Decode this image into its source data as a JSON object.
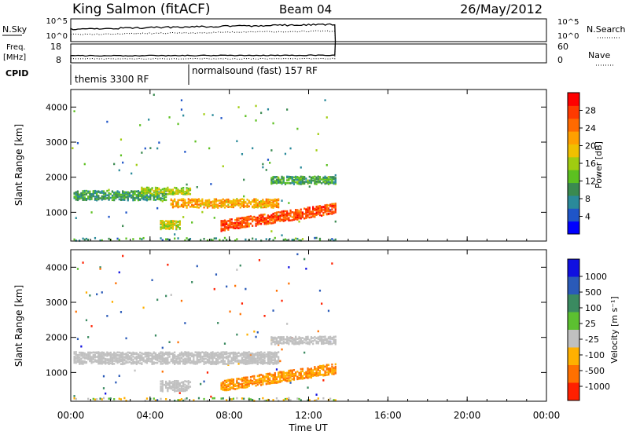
{
  "header": {
    "station": "King Salmon (fitACF)",
    "beam": "Beam 04",
    "date": "26/May/2012"
  },
  "summary_panels": {
    "nsky_label": "N.Sky",
    "nsky_ticks": [
      "10^5",
      "10^0"
    ],
    "nsearch_label": "N.Search",
    "nsearch_ticks": [
      "10^5",
      "10^0"
    ],
    "freq_label_1": "Freq.",
    "freq_label_2": "[MHz]",
    "freq_ticks": [
      "18",
      "8"
    ],
    "nave_label": "Nave",
    "nave_ticks": [
      "60",
      "0"
    ],
    "cpid_label": "CPID",
    "cpid_segments": [
      {
        "label": "themis 3300 RF",
        "start_hour": 0.0
      },
      {
        "label": "normalsound (fast) 157 RF",
        "start_hour": 6.0
      }
    ]
  },
  "axes": {
    "xlabel": "Time UT",
    "ylabel": "Slant Range [km]",
    "x_ticks": [
      "00:00",
      "04:00",
      "08:00",
      "12:00",
      "16:00",
      "20:00",
      "00:00"
    ],
    "y_ticks": [
      "1000",
      "2000",
      "3000",
      "4000"
    ]
  },
  "power_scale": {
    "label": "Power [dB]",
    "ticks": [
      "4",
      "8",
      "12",
      "16",
      "20",
      "24",
      "28"
    ],
    "colors": [
      "#0000ff",
      "#1f55c8",
      "#2a8a9a",
      "#3a8a50",
      "#5cc020",
      "#a0cc10",
      "#f0c000",
      "#ffa000",
      "#ff6a00",
      "#ff3a00",
      "#ff0000"
    ]
  },
  "velocity_scale": {
    "label": "Velocity [m s⁻¹]",
    "ticks": [
      "1000",
      "500",
      "100",
      "25",
      "-25",
      "-100",
      "-500",
      "-1000"
    ],
    "colors": [
      "#1010e0",
      "#2a5ab8",
      "#3a8a60",
      "#5cc030",
      "#c0c0c0",
      "#ffb000",
      "#ff7000",
      "#ff2000"
    ]
  },
  "chart_data": {
    "type": "heatmap",
    "x_range_hours": [
      0,
      24
    ],
    "y_range_km": [
      180,
      4500
    ],
    "data_end_hour": 13.35,
    "power_features": [
      {
        "t_start": 0.1,
        "t_end": 4.8,
        "range_center": 1520,
        "range_width": 280,
        "value_db": 9
      },
      {
        "t_start": 3.5,
        "t_end": 6.0,
        "range_center": 1650,
        "range_width": 200,
        "value_db": 15
      },
      {
        "t_start": 5.0,
        "t_end": 10.5,
        "range_center": 1300,
        "range_width": 260,
        "value_db": 20
      },
      {
        "t_start": 7.5,
        "t_end": 13.35,
        "range_center_start": 650,
        "range_center_end": 1150,
        "range_width": 300,
        "value_db": 26
      },
      {
        "t_start": 10.0,
        "t_end": 13.35,
        "range_center": 1950,
        "range_width": 220,
        "value_db": 10
      },
      {
        "t_start": 4.5,
        "t_end": 5.5,
        "range_center": 680,
        "range_width": 250,
        "value_db": 16
      }
    ],
    "velocity_features": [
      {
        "t_start": 0.1,
        "t_end": 10.5,
        "range_center": 1450,
        "range_width": 350,
        "value_ms": 0
      },
      {
        "t_start": 7.5,
        "t_end": 13.35,
        "range_center_start": 650,
        "range_center_end": 1150,
        "range_width": 300,
        "value_ms": -100
      },
      {
        "t_start": 10.0,
        "t_end": 13.35,
        "range_center": 1950,
        "range_width": 220,
        "value_ms": 0
      },
      {
        "t_start": 4.5,
        "t_end": 6.0,
        "range_center": 650,
        "range_width": 300,
        "value_ms": 0
      }
    ]
  }
}
